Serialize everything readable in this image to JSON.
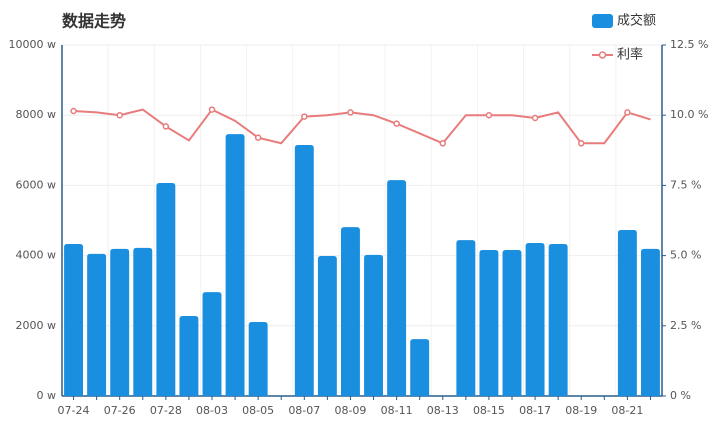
{
  "chart_data": {
    "type": "bar-line",
    "title": "数据走势",
    "categories": [
      "07-24",
      null,
      "07-26",
      null,
      "07-28",
      null,
      "08-03",
      null,
      "08-05",
      null,
      "08-07",
      null,
      "08-09",
      null,
      "08-11",
      null,
      "08-13",
      null,
      "08-15",
      null,
      "08-17",
      null,
      "08-19",
      null,
      "08-21",
      null
    ],
    "series": [
      {
        "name": "成交额",
        "color": "#1a8fe0",
        "type": "bar",
        "values": [
          4330,
          4050,
          4190,
          4220,
          6070,
          2280,
          2960,
          7460,
          2110,
          null,
          7150,
          3990,
          4810,
          4020,
          6150,
          1620,
          null,
          4440,
          4160,
          4160,
          4360,
          4330,
          0,
          0,
          4730,
          4190
        ]
      },
      {
        "name": "利率",
        "color": "#e87c7c",
        "type": "line",
        "axis": "y2",
        "values": [
          10.15,
          10.1,
          10.0,
          10.2,
          9.6,
          9.1,
          10.2,
          9.8,
          9.2,
          9.0,
          9.95,
          10.0,
          10.1,
          10.0,
          9.7,
          9.35,
          9.0,
          10.0,
          10.0,
          10.0,
          9.9,
          10.1,
          9.0,
          9.0,
          10.1,
          9.85
        ]
      }
    ],
    "ylim": [
      0,
      10000
    ],
    "yticks": [
      {
        "value": 0,
        "label": "0 w"
      },
      {
        "value": 2000,
        "label": "2000 w"
      },
      {
        "value": 4000,
        "label": "4000 w"
      },
      {
        "value": 6000,
        "label": "6000 w"
      },
      {
        "value": 8000,
        "label": "8000 w"
      },
      {
        "value": 10000,
        "label": "10000 w"
      }
    ],
    "y2lim": [
      0,
      12.5
    ],
    "y2ticks": [
      {
        "value": 0,
        "label": "0 %"
      },
      {
        "value": 2.5,
        "label": "2.5 %"
      },
      {
        "value": 5,
        "label": "5.0 %"
      },
      {
        "value": 7.5,
        "label": "7.5 %"
      },
      {
        "value": 10,
        "label": "10.0 %"
      },
      {
        "value": 12.5,
        "label": "12.5 %"
      }
    ],
    "grid": true
  }
}
